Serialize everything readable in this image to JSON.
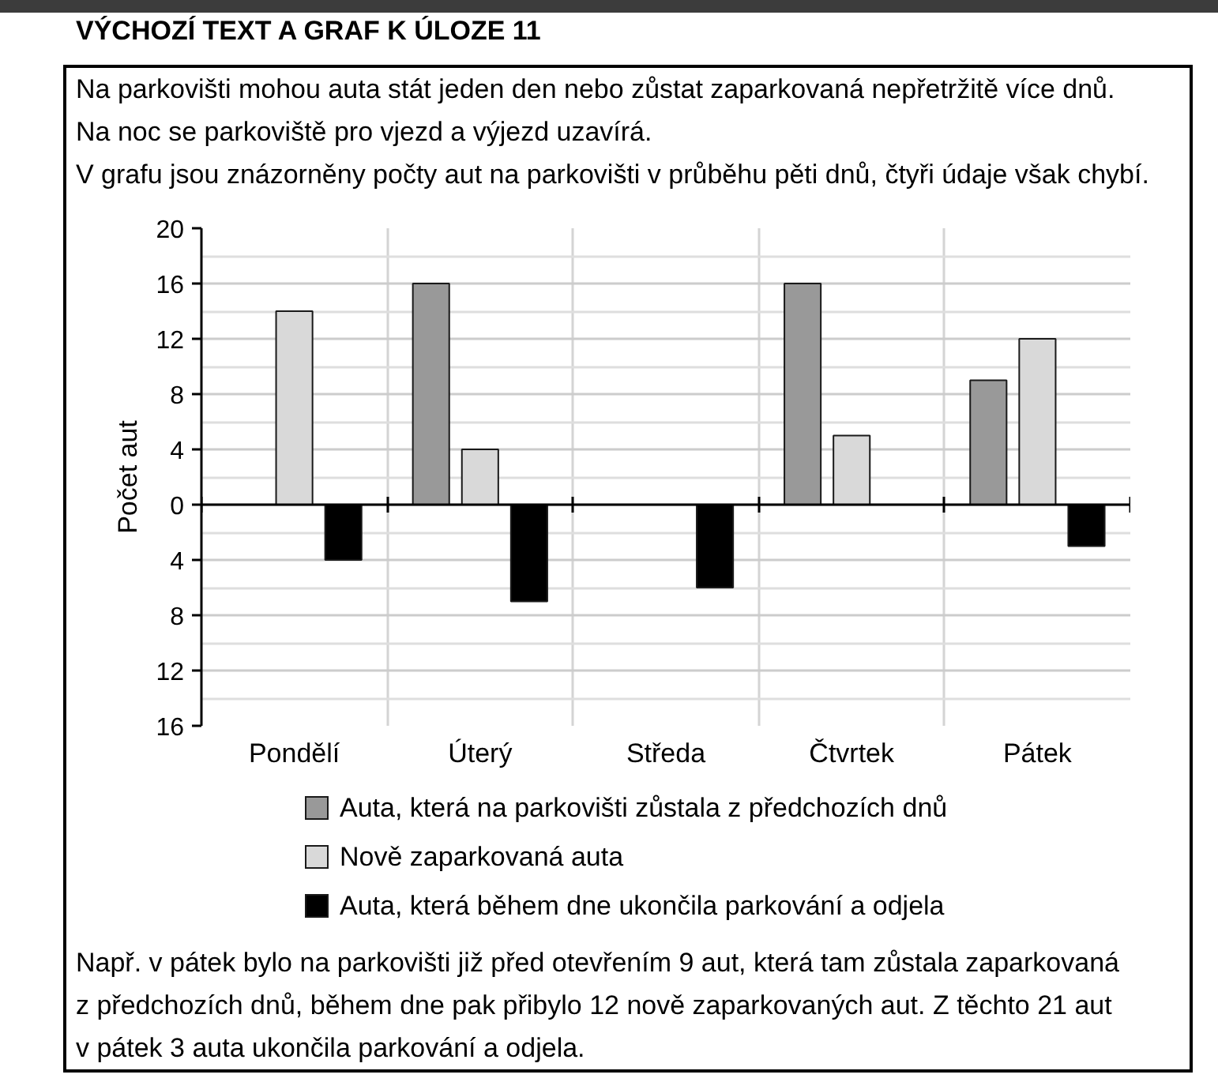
{
  "chart_data": {
    "type": "bar",
    "title": "VÝCHOZÍ TEXT A GRAF K ÚLOZE 11",
    "subtitle": "Na parkovišti mohou auta stát jeden den nebo zůstat zaparkovaná nepřetržitě více dnů.\nNa noc se parkoviště pro vjezd a výjezd uzavírá.\nV grafu jsou znázorněny počty aut na parkovišti v průběhu pěti dnů, čtyři údaje však chybí.",
    "ylabel": "Počet aut",
    "categories": [
      "Pondělí",
      "Úterý",
      "Středa",
      "Čtvrtek",
      "Pátek"
    ],
    "series": [
      {
        "name": "Auta, která na parkovišti zůstala z předchozích dnů",
        "color": "#999999",
        "values": [
          null,
          16,
          null,
          16,
          9
        ]
      },
      {
        "name": "Nově zaparkovaná auta",
        "color": "#d9d9d9",
        "values": [
          14,
          4,
          null,
          5,
          12
        ]
      },
      {
        "name": "Auta, která během dne ukončila parkování a odjela",
        "color": "#000000",
        "values": [
          -4,
          -7,
          -6,
          null,
          -3
        ]
      }
    ],
    "ylim": [
      -16,
      20
    ],
    "yticks": [
      {
        "value": -16,
        "label": "16"
      },
      {
        "value": -14,
        "label": null
      },
      {
        "value": -12,
        "label": "12"
      },
      {
        "value": -10,
        "label": null
      },
      {
        "value": -8,
        "label": "8"
      },
      {
        "value": -6,
        "label": null
      },
      {
        "value": -4,
        "label": "4"
      },
      {
        "value": -2,
        "label": null
      },
      0,
      {
        "value": 2,
        "label": null
      },
      4,
      {
        "value": 6,
        "label": null
      },
      8,
      {
        "value": 10,
        "label": null
      },
      12,
      {
        "value": 14,
        "label": null
      },
      16,
      {
        "value": 18,
        "label": null
      },
      20
    ],
    "grid": true,
    "legend": "bottom",
    "annotations": [
      "Např. v pátek bylo na parkovišti již před otevřením 9 aut, která tam zůstala zaparkovaná z předchozích dnů, během dne pak přibylo 12 nově zaparkovaných aut. Z těchto 21 aut v pátek 3 auta ukončila parkování a odjela."
    ]
  }
}
